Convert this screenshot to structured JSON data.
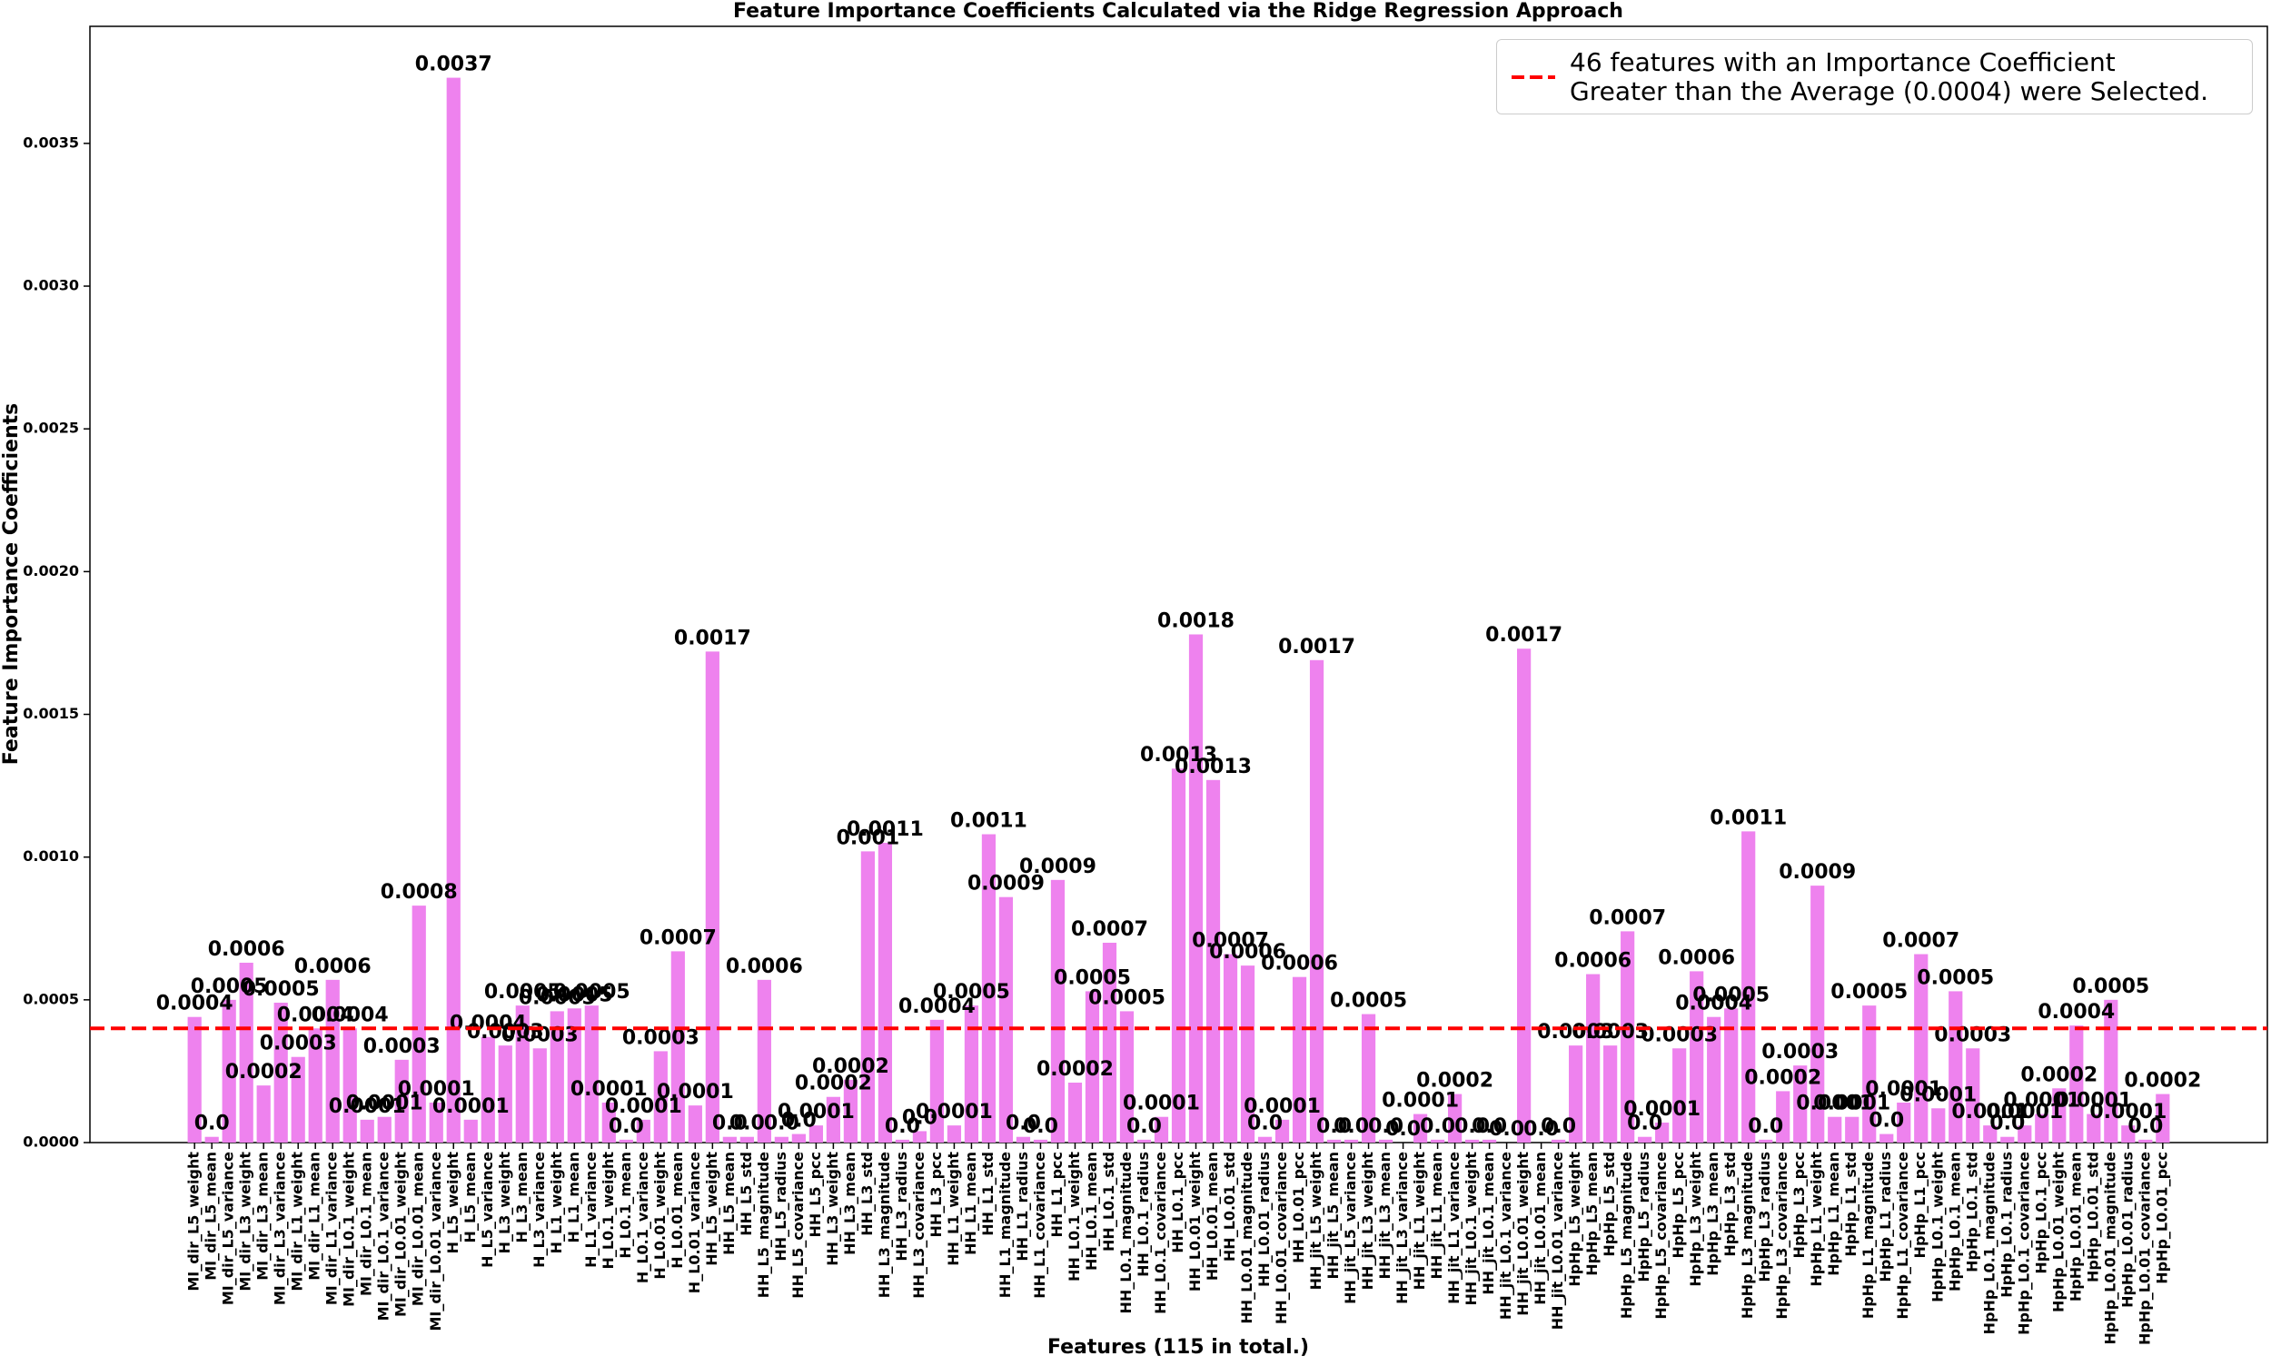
{
  "chart_data": {
    "type": "bar",
    "title": "Feature Importance Coefficients Calculated via the Ridge Regression Approach",
    "x_label": "Features (115 in total.)",
    "y_label": "Feature Importance Coefficients",
    "color": "#ee82ee",
    "categories": [
      "MI_dir_L5_weight",
      "MI_dir_L5_mean",
      "MI_dir_L5_variance",
      "MI_dir_L3_weight",
      "MI_dir_L3_mean",
      "MI_dir_L3_variance",
      "MI_dir_L1_weight",
      "MI_dir_L1_mean",
      "MI_dir_L1_variance",
      "MI_dir_L0.1_weight",
      "MI_dir_L0.1_mean",
      "MI_dir_L0.1_variance",
      "MI_dir_L0.01_weight",
      "MI_dir_L0.01_mean",
      "MI_dir_L0.01_variance",
      "H_L5_weight",
      "H_L5_mean",
      "H_L5_variance",
      "H_L3_weight",
      "H_L3_mean",
      "H_L3_variance",
      "H_L1_weight",
      "H_L1_mean",
      "H_L1_variance",
      "H_L0.1_weight",
      "H_L0.1_mean",
      "H_L0.1_variance",
      "H_L0.01_weight",
      "H_L0.01_mean",
      "H_L0.01_variance",
      "HH_L5_weight",
      "HH_L5_mean",
      "HH_L5_std",
      "HH_L5_magnitude",
      "HH_L5_radius",
      "HH_L5_covariance",
      "HH_L5_pcc",
      "HH_L3_weight",
      "HH_L3_mean",
      "HH_L3_std",
      "HH_L3_magnitude",
      "HH_L3_radius",
      "HH_L3_covariance",
      "HH_L3_pcc",
      "HH_L1_weight",
      "HH_L1_mean",
      "HH_L1_std",
      "HH_L1_magnitude",
      "HH_L1_radius",
      "HH_L1_covariance",
      "HH_L1_pcc",
      "HH_L0.1_weight",
      "HH_L0.1_mean",
      "HH_L0.1_std",
      "HH_L0.1_magnitude",
      "HH_L0.1_radius",
      "HH_L0.1_covariance",
      "HH_L0.1_pcc",
      "HH_L0.01_weight",
      "HH_L0.01_mean",
      "HH_L0.01_std",
      "HH_L0.01_magnitude",
      "HH_L0.01_radius",
      "HH_L0.01_covariance",
      "HH_L0.01_pcc",
      "HH_jit_L5_weight",
      "HH_jit_L5_mean",
      "HH_jit_L5_variance",
      "HH_jit_L3_weight",
      "HH_jit_L3_mean",
      "HH_jit_L3_variance",
      "HH_jit_L1_weight",
      "HH_jit_L1_mean",
      "HH_jit_L1_variance",
      "HH_jit_L0.1_weight",
      "HH_jit_L0.1_mean",
      "HH_jit_L0.1_variance",
      "HH_jit_L0.01_weight",
      "HH_jit_L0.01_mean",
      "HH_jit_L0.01_variance",
      "HpHp_L5_weight",
      "HpHp_L5_mean",
      "HpHp_L5_std",
      "HpHp_L5_magnitude",
      "HpHp_L5_radius",
      "HpHp_L5_covariance",
      "HpHp_L5_pcc",
      "HpHp_L3_weight",
      "HpHp_L3_mean",
      "HpHp_L3_std",
      "HpHp_L3_magnitude",
      "HpHp_L3_radius",
      "HpHp_L3_covariance",
      "HpHp_L3_pcc",
      "HpHp_L1_weight",
      "HpHp_L1_mean",
      "HpHp_L1_std",
      "HpHp_L1_magnitude",
      "HpHp_L1_radius",
      "HpHp_L1_covariance",
      "HpHp_L1_pcc",
      "HpHp_L0.1_weight",
      "HpHp_L0.1_mean",
      "HpHp_L0.1_std",
      "HpHp_L0.1_magnitude",
      "HpHp_L0.1_radius",
      "HpHp_L0.1_covariance",
      "HpHp_L0.1_pcc",
      "HpHp_L0.01_weight",
      "HpHp_L0.01_mean",
      "HpHp_L0.01_std",
      "HpHp_L0.01_magnitude",
      "HpHp_L0.01_radius",
      "HpHp_L0.01_covariance",
      "HpHp_L0.01_pcc"
    ],
    "values": [
      0.00044,
      2e-05,
      0.0005,
      0.00063,
      0.0002,
      0.00049,
      0.0003,
      0.0004,
      0.00057,
      0.0004,
      8e-05,
      9e-05,
      0.00029,
      0.00083,
      0.00014,
      0.00373,
      8e-05,
      0.00037,
      0.00034,
      0.00048,
      0.00033,
      0.00046,
      0.00047,
      0.00048,
      0.00014,
      1e-05,
      8e-05,
      0.00032,
      0.00067,
      0.00013,
      0.00172,
      2e-05,
      2e-05,
      0.00057,
      2e-05,
      3e-05,
      6e-05,
      0.00016,
      0.00022,
      0.00102,
      0.00105,
      1e-05,
      4e-05,
      0.00043,
      6e-05,
      0.00048,
      0.00108,
      0.00086,
      2e-05,
      1e-05,
      0.00092,
      0.00021,
      0.00053,
      0.0007,
      0.00046,
      1e-05,
      9e-05,
      0.00131,
      0.00178,
      0.00127,
      0.00066,
      0.00062,
      2e-05,
      8e-05,
      0.00058,
      0.00169,
      1e-05,
      1e-05,
      0.00045,
      1e-05,
      0,
      0.0001,
      1e-05,
      0.00017,
      1e-05,
      1e-05,
      0,
      0.00173,
      0,
      1e-05,
      0.00034,
      0.00059,
      0.00034,
      0.00074,
      2e-05,
      7e-05,
      0.00033,
      0.0006,
      0.00044,
      0.00047,
      0.00109,
      1e-05,
      0.00018,
      0.00027,
      0.0009,
      9e-05,
      9e-05,
      0.00048,
      3e-05,
      0.00014,
      0.00066,
      0.00012,
      0.00053,
      0.00033,
      6e-05,
      2e-05,
      6e-05,
      0.0001,
      0.00019,
      0.00041,
      0.0001,
      0.0005,
      6e-05,
      1e-05,
      0.00017
    ],
    "value_labels": [
      "0.0004",
      "0.0",
      "0.0005",
      "0.0006",
      "0.0002",
      "0.0005",
      "0.0003",
      "0.0004",
      "0.0006",
      "0.0004",
      "0.0001",
      "0.0001",
      "0.0003",
      "0.0008",
      "0.0001",
      "0.0037",
      "0.0001",
      "0.0004",
      "0.0003",
      "0.0005",
      "0.0003",
      "0.0005",
      "0.0005",
      "0.0005",
      "0.0001",
      "0.0",
      "0.0001",
      "0.0003",
      "0.0007",
      "0.0001",
      "0.0017",
      "0.0",
      "0.0",
      "0.0006",
      "0.0",
      "0.0",
      "0.0001",
      "0.0002",
      "0.0002",
      "0.001",
      "0.0011",
      "0.0",
      "0.0",
      "0.0004",
      "0.0001",
      "0.0005",
      "0.0011",
      "0.0009",
      "0.0",
      "0.0",
      "0.0009",
      "0.0002",
      "0.0005",
      "0.0007",
      "0.0005",
      "0.0",
      "0.0001",
      "0.0013",
      "0.0018",
      "0.0013",
      "0.0007",
      "0.0006",
      "0.0",
      "0.0001",
      "0.0006",
      "0.0017",
      "0.0",
      "0.0",
      "0.0005",
      "0.0",
      "0.0",
      "0.0001",
      "0.0",
      "0.0002",
      "0.0",
      "0.0",
      "0.0",
      "0.0017",
      "0.0",
      "0.0",
      "0.0003",
      "0.0006",
      "0.0003",
      "0.0007",
      "0.0",
      "0.0001",
      "0.0003",
      "0.0006",
      "0.0004",
      "0.0005",
      "0.0011",
      "0.0",
      "0.0002",
      "0.0003",
      "0.0009",
      "0.0001",
      "0.0001",
      "0.0005",
      "0.0",
      "0.0001",
      "0.0007",
      "0.0001",
      "0.0005",
      "0.0003",
      "0.0001",
      "0.0",
      "0.0001",
      "0.0001",
      "0.0002",
      "0.0004",
      "0.0001",
      "0.0005",
      "0.0001",
      "0.0",
      "0.0002"
    ],
    "ylim": [
      0,
      0.00391
    ],
    "yticks": [
      {
        "value": 0,
        "label": "0.0000"
      },
      {
        "value": 0.0005,
        "label": "0.0005"
      },
      {
        "value": 0.001,
        "label": "0.0010"
      },
      {
        "value": 0.0015,
        "label": "0.0015"
      },
      {
        "value": 0.002,
        "label": "0.0020"
      },
      {
        "value": 0.0025,
        "label": "0.0025"
      },
      {
        "value": 0.003,
        "label": "0.0030"
      },
      {
        "value": 0.0035,
        "label": "0.0035"
      }
    ],
    "reference_line": {
      "value": 0.0004,
      "color": "#ff0000",
      "label": "46 features with an Importance Coefficient\nGreater than the Average (0.0004) were Selected."
    },
    "legend": "upper right"
  }
}
